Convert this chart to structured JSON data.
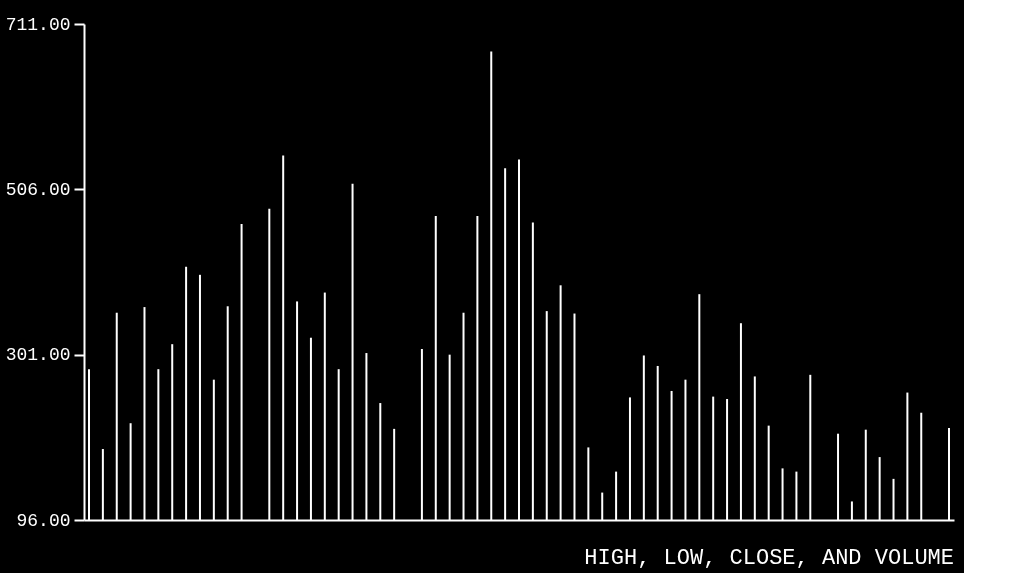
{
  "chart_data": {
    "type": "bar",
    "title": "HIGH, LOW, CLOSE, AND VOLUME",
    "categories": [
      null,
      null,
      null,
      null,
      null,
      null,
      null,
      null,
      null,
      null,
      null,
      null,
      null,
      null,
      null,
      null,
      null,
      null,
      null,
      null,
      null,
      null,
      null,
      null,
      null,
      null,
      null,
      null,
      null,
      null,
      null,
      null,
      null,
      null,
      null,
      null,
      null,
      null,
      null,
      null,
      null,
      null,
      null,
      null,
      null,
      null,
      null,
      null,
      null,
      null,
      null,
      null,
      null,
      null,
      null,
      null,
      null,
      null,
      null,
      null,
      null,
      null,
      null
    ],
    "values": [
      283,
      184,
      353,
      216,
      360,
      283,
      314,
      410,
      400,
      270,
      361,
      463,
      null,
      482,
      548,
      367,
      322,
      378,
      283,
      513,
      303,
      241,
      209,
      null,
      308,
      473,
      301,
      353,
      473,
      677,
      532,
      543,
      465,
      355,
      387,
      352,
      186,
      130,
      156,
      248,
      300,
      287,
      256,
      270,
      376,
      249,
      246,
      340,
      274,
      213,
      160,
      156,
      276,
      null,
      203,
      119,
      208,
      174,
      147,
      254,
      229,
      null,
      210
    ],
    "color": "#ffffff",
    "ylim": [
      96,
      711
    ],
    "yticks": [
      {
        "value": 96,
        "label": "96.00"
      },
      {
        "value": 301,
        "label": "301.00"
      },
      {
        "value": 506,
        "label": "506.00"
      },
      {
        "value": 711,
        "label": "711.00"
      }
    ],
    "grid": false
  }
}
